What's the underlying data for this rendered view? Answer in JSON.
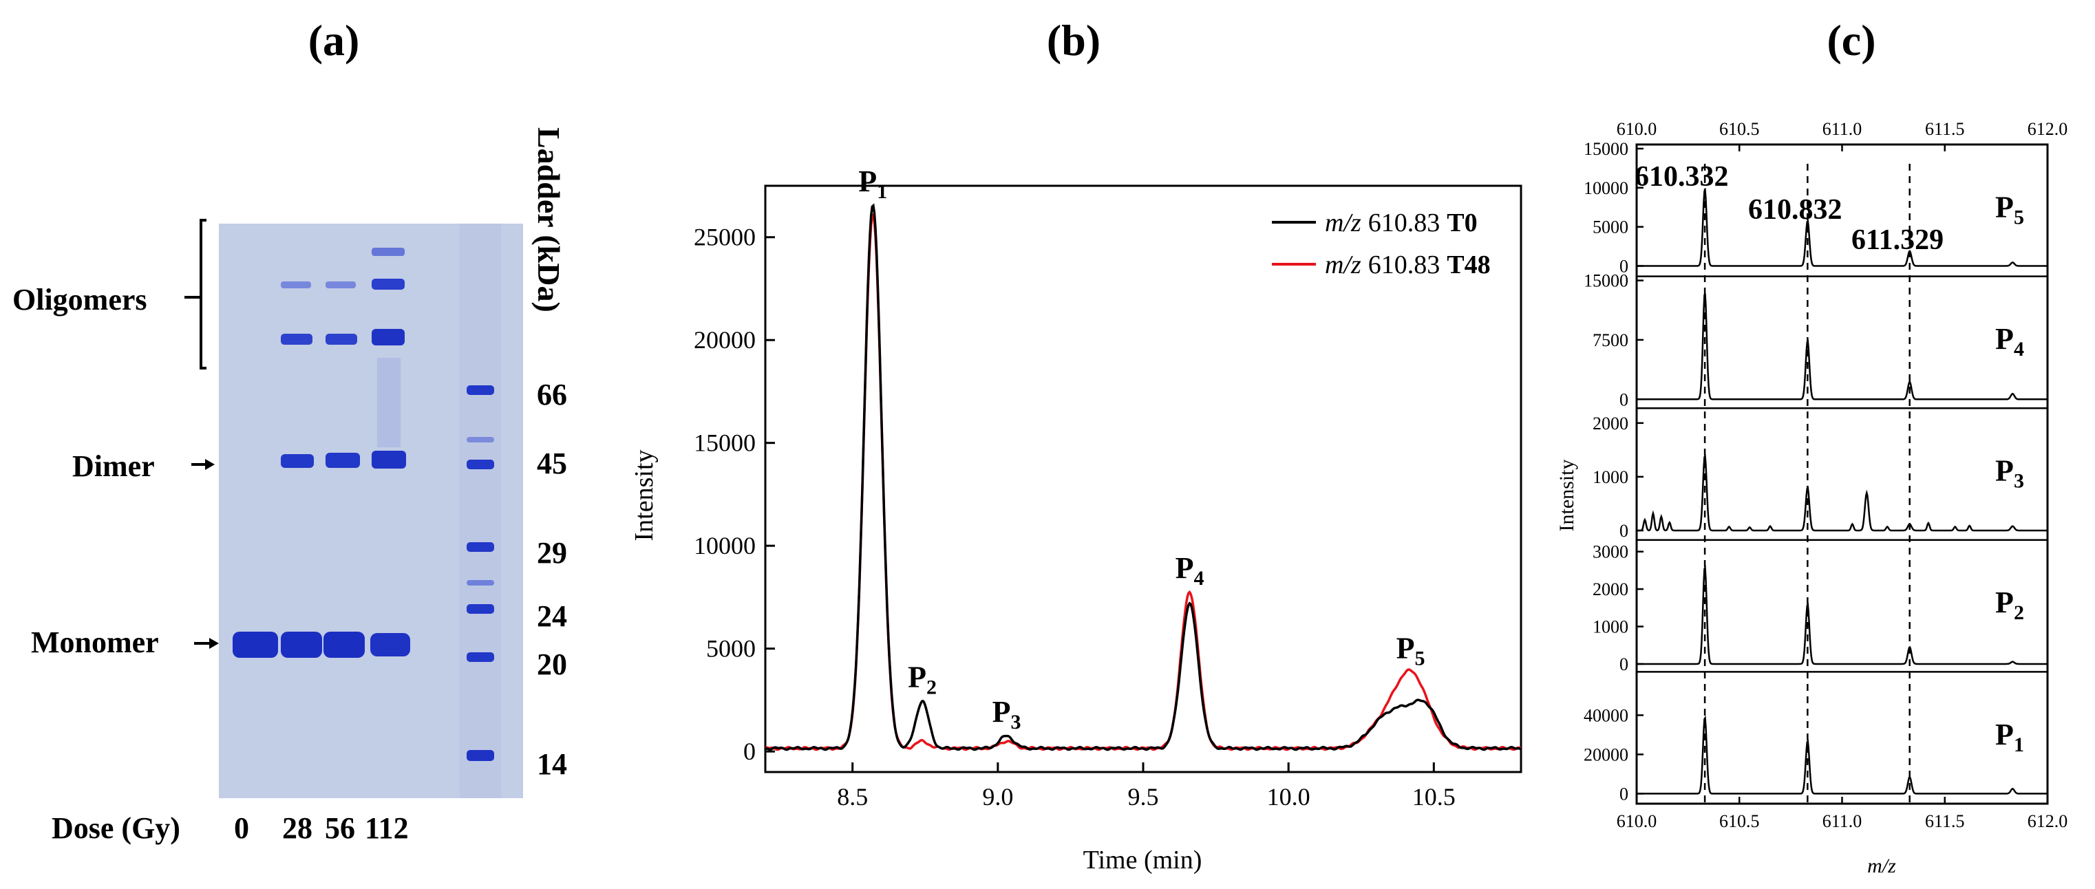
{
  "panel_a": {
    "label": "(a)",
    "ladder_title": "Ladder (kDa)",
    "ladder_marks": [
      "66",
      "45",
      "29",
      "24",
      "20",
      "14"
    ],
    "band_labels": {
      "oligomers": "Oligomers",
      "dimer": "Dimer",
      "monomer": "Monomer"
    },
    "dose_label": "Dose (Gy)",
    "dose_values": [
      "0",
      "28",
      "56",
      "112"
    ],
    "gel_color": "#c2cde6",
    "band_color": "#1e33c4"
  },
  "chart_data": [
    {
      "type": "line",
      "panel": "(b)",
      "title": "",
      "xlabel": "Time (min)",
      "ylabel": "Intensity",
      "xlim": [
        8.2,
        10.8
      ],
      "ylim": [
        -1000,
        27500
      ],
      "xticks": [
        8.5,
        9.0,
        9.5,
        10.0,
        10.5
      ],
      "xtick_labels": [
        "8.5",
        "9.0",
        "9.5",
        "10.0",
        "10.5"
      ],
      "yticks": [
        0,
        5000,
        10000,
        15000,
        20000,
        25000
      ],
      "ytick_labels": [
        "0",
        "5000",
        "10000",
        "15000",
        "20000",
        "25000"
      ],
      "legend_position": "top-right",
      "series": [
        {
          "name": "T0",
          "legend_prefix": "m/z",
          "legend_mz": "610.83",
          "legend_tag": "T0",
          "color": "#000000",
          "peaks": [
            [
              8.57,
              26400,
              0.03
            ],
            [
              8.74,
              2300,
              0.022
            ],
            [
              9.03,
              600,
              0.025
            ],
            [
              9.66,
              7000,
              0.03
            ],
            [
              10.4,
              1800,
              0.07
            ],
            [
              10.31,
              600,
              0.05
            ],
            [
              10.48,
              1200,
              0.04
            ]
          ]
        },
        {
          "name": "T48",
          "legend_prefix": "m/z",
          "legend_mz": "610.83",
          "legend_tag": "T48",
          "color": "#e8141c",
          "peaks": [
            [
              8.57,
              26000,
              0.03
            ],
            [
              8.74,
              350,
              0.022
            ],
            [
              9.03,
              350,
              0.025
            ],
            [
              9.66,
              7600,
              0.03
            ],
            [
              10.42,
              3700,
              0.06
            ],
            [
              10.31,
              800,
              0.05
            ]
          ]
        }
      ],
      "baseline": 150,
      "annotations": [
        {
          "text": "P",
          "sub": "1",
          "x": 8.57,
          "y": 26400
        },
        {
          "text": "P",
          "sub": "2",
          "x": 8.74,
          "y": 2300
        },
        {
          "text": "P",
          "sub": "3",
          "x": 9.03,
          "y": 600
        },
        {
          "text": "P",
          "sub": "4",
          "x": 9.66,
          "y": 7600
        },
        {
          "text": "P",
          "sub": "5",
          "x": 10.42,
          "y": 3700
        }
      ]
    },
    {
      "type": "line",
      "panel": "(c)",
      "title": "",
      "xlabel": "m/z",
      "ylabel": "Intensity",
      "xlim": [
        610.0,
        612.0
      ],
      "xticks": [
        610.0,
        610.5,
        611.0,
        611.5,
        612.0
      ],
      "xtick_labels": [
        "610.0",
        "610.5",
        "611.0",
        "611.5",
        "612.0"
      ],
      "reference_lines": [
        610.332,
        610.832,
        611.329
      ],
      "reference_labels": [
        "610.332",
        "610.832",
        "611.329"
      ],
      "subplots": [
        {
          "label": "P",
          "sub": "5",
          "ylim": [
            -800,
            15000
          ],
          "yticks": [
            0,
            5000,
            10000,
            15000
          ],
          "ytick_labels": [
            "0",
            "5000",
            "10000",
            "15000"
          ],
          "peaks": [
            [
              610.332,
              9800
            ],
            [
              610.832,
              5800
            ],
            [
              611.329,
              1900
            ],
            [
              611.83,
              450
            ]
          ],
          "noise": []
        },
        {
          "label": "P",
          "sub": "4",
          "ylim": [
            -600,
            15000
          ],
          "yticks": [
            0,
            7500,
            15000
          ],
          "ytick_labels": [
            "0",
            "7500",
            "15000"
          ],
          "peaks": [
            [
              610.332,
              13500
            ],
            [
              610.832,
              7400
            ],
            [
              611.329,
              2200
            ],
            [
              611.83,
              700
            ]
          ],
          "noise": []
        },
        {
          "label": "P",
          "sub": "3",
          "ylim": [
            -100,
            2200
          ],
          "yticks": [
            0,
            1000,
            2000
          ],
          "ytick_labels": [
            "0",
            "1000",
            "2000"
          ],
          "peaks": [
            [
              610.332,
              1400
            ],
            [
              610.832,
              800
            ],
            [
              611.12,
              700
            ],
            [
              611.329,
              120
            ],
            [
              611.83,
              80
            ]
          ],
          "noise": [
            [
              610.04,
              200
            ],
            [
              610.08,
              320
            ],
            [
              610.12,
              260
            ],
            [
              610.16,
              150
            ],
            [
              610.45,
              70
            ],
            [
              610.55,
              60
            ],
            [
              610.65,
              80
            ],
            [
              611.05,
              120
            ],
            [
              611.22,
              70
            ],
            [
              611.42,
              140
            ],
            [
              611.55,
              70
            ],
            [
              611.62,
              90
            ]
          ]
        },
        {
          "label": "P",
          "sub": "2",
          "ylim": [
            -100,
            3200
          ],
          "yticks": [
            0,
            1000,
            2000,
            3000
          ],
          "ytick_labels": [
            "0",
            "1000",
            "2000",
            "3000"
          ],
          "peaks": [
            [
              610.332,
              2600
            ],
            [
              610.832,
              1600
            ],
            [
              611.329,
              450
            ],
            [
              611.83,
              60
            ]
          ],
          "noise": []
        },
        {
          "label": "P",
          "sub": "1",
          "ylim": [
            -3000,
            60000
          ],
          "yticks": [
            0,
            20000,
            40000
          ],
          "ytick_labels": [
            "0",
            "20000",
            "40000"
          ],
          "peaks": [
            [
              610.332,
              39000
            ],
            [
              610.832,
              27000
            ],
            [
              611.329,
              8500
            ],
            [
              611.83,
              2500
            ]
          ],
          "noise": []
        }
      ]
    }
  ]
}
